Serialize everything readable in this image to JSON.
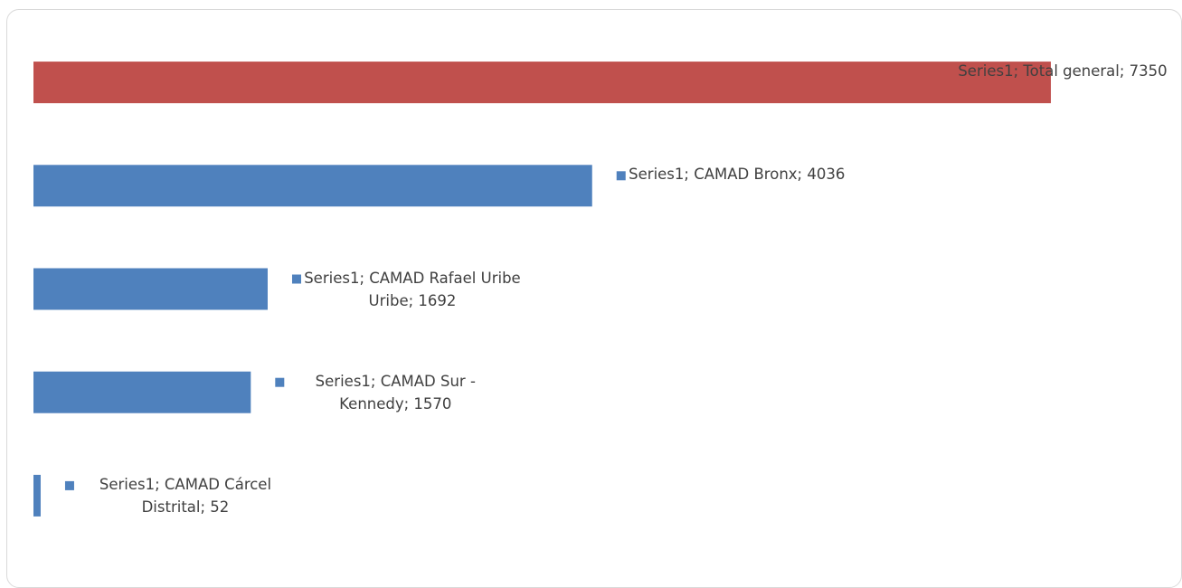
{
  "chart_data": {
    "type": "bar",
    "orientation": "horizontal",
    "series_name": "Series1",
    "categories": [
      "Total general",
      "CAMAD Bronx",
      "CAMAD Rafael Uribe Uribe",
      "CAMAD Sur - Kennedy",
      "CAMAD Cárcel Distrital"
    ],
    "values": [
      7350,
      4036,
      1692,
      1570,
      52
    ],
    "value_labels": [
      "Series1; Total general; 7350",
      "Series1; CAMAD Bronx; 4036",
      "Series1; CAMAD Rafael Uribe Uribe; 1692",
      "Series1; CAMAD Sur - Kennedy; 1570",
      "Series1; CAMAD Cárcel Distrital; 52"
    ],
    "colors": [
      "#c0504d",
      "#4f81bd",
      "#4f81bd",
      "#4f81bd",
      "#4f81bd"
    ]
  }
}
